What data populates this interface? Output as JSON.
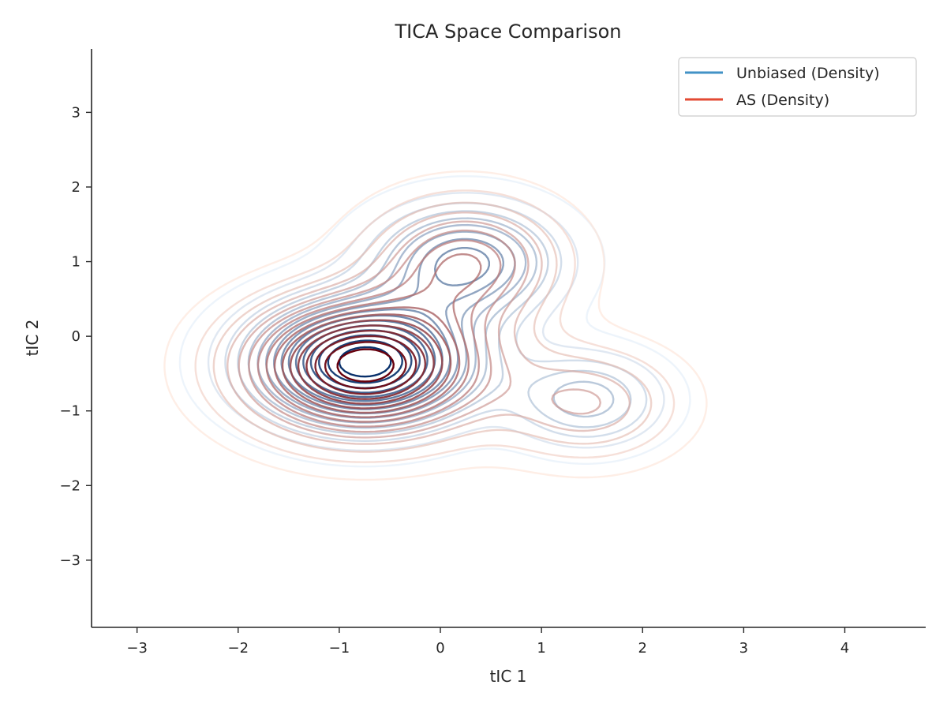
{
  "chart_data": {
    "type": "contour",
    "title": "TICA Space Comparison",
    "xlabel": "tIC 1",
    "ylabel": "tIC 2",
    "xlim": [
      -3.45,
      4.8
    ],
    "ylim": [
      -3.9,
      3.85
    ],
    "xticks": [
      -3,
      -2,
      -1,
      0,
      1,
      2,
      3,
      4
    ],
    "xtick_labels": [
      "−3",
      "−2",
      "−1",
      "0",
      "1",
      "2",
      "3",
      "4"
    ],
    "yticks": [
      -3,
      -2,
      -1,
      0,
      1,
      2,
      3
    ],
    "ytick_labels": [
      "−3",
      "−2",
      "−1",
      "0",
      "1",
      "2",
      "3"
    ],
    "legend_position": "top-right",
    "series": [
      {
        "name": "Unbiased (Density)",
        "legend_color": "#4292c6",
        "color_low": "#deebf7",
        "color_high": "#08306b",
        "levels": 16,
        "modes": [
          {
            "x": -0.75,
            "y": -0.35,
            "sx": 0.72,
            "sy": 0.55,
            "weight": 1.0
          },
          {
            "x": 0.25,
            "y": 1.0,
            "sx": 0.6,
            "sy": 0.5,
            "weight": 0.55
          },
          {
            "x": 1.45,
            "y": -0.85,
            "sx": 0.5,
            "sy": 0.42,
            "weight": 0.32
          }
        ]
      },
      {
        "name": "AS (Density)",
        "legend_color": "#e34a33",
        "color_low": "#fee0d2",
        "color_high": "#67000d",
        "levels": 16,
        "modes": [
          {
            "x": -0.75,
            "y": -0.4,
            "sx": 0.78,
            "sy": 0.6,
            "weight": 1.0
          },
          {
            "x": 0.25,
            "y": 1.0,
            "sx": 0.62,
            "sy": 0.55,
            "weight": 0.45
          },
          {
            "x": 1.45,
            "y": -0.9,
            "sx": 0.6,
            "sy": 0.5,
            "weight": 0.28
          }
        ]
      }
    ]
  }
}
